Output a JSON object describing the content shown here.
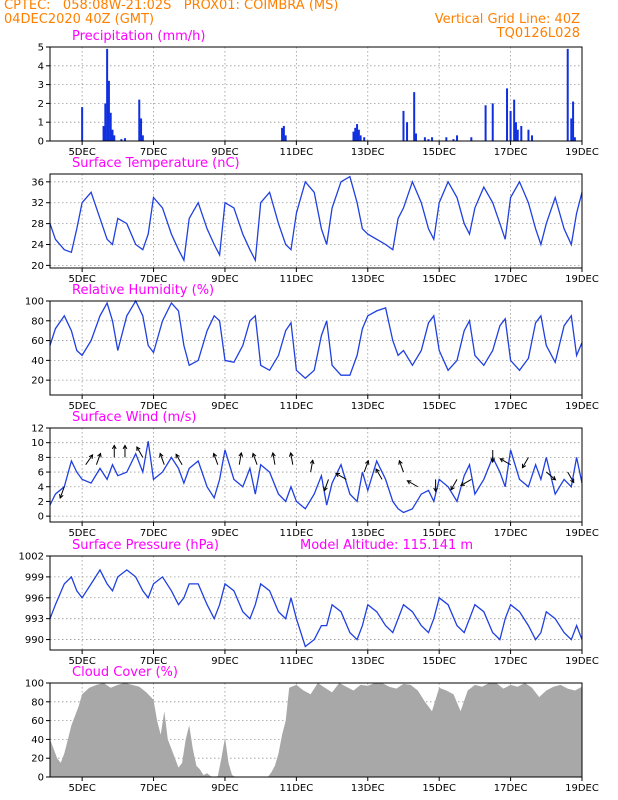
{
  "header": {
    "line1": "CPTEC:   058:08W-21:02S   PROX01: COIMBRA (MS)",
    "line2_left": "04DEC2020 40Z (GMT)",
    "line2_right": "Vertical Grid Line: 40Z",
    "line3_right": "TQ0126L028"
  },
  "x_axis": {
    "tick_labels": [
      "5DEC",
      "7DEC",
      "9DEC",
      "11DEC",
      "13DEC",
      "15DEC",
      "17DEC",
      "19DEC"
    ],
    "tick_days": [
      5,
      7,
      9,
      11,
      13,
      15,
      17,
      19
    ],
    "range_days": [
      4.1,
      19.0
    ]
  },
  "colors": {
    "line": "#2040e0",
    "bar": "#1030e0",
    "cloud": "#a8a8a8",
    "title": "#ff00ff",
    "header": "#ff8000",
    "arrow": "#000000"
  },
  "chart_data": [
    {
      "type": "bar",
      "title": "Precipitation (mm/h)",
      "ylim": [
        0,
        5
      ],
      "yticks": [
        0,
        1,
        2,
        3,
        4,
        5
      ],
      "grid": true,
      "x_day": [
        5.0,
        5.6,
        5.65,
        5.7,
        5.75,
        5.8,
        5.85,
        5.9,
        6.1,
        6.2,
        6.6,
        6.65,
        6.7,
        10.6,
        10.65,
        10.7,
        12.6,
        12.65,
        12.7,
        12.75,
        12.8,
        12.9,
        14.0,
        14.1,
        14.3,
        14.35,
        14.6,
        14.7,
        14.8,
        15.2,
        15.4,
        15.5,
        15.9,
        16.3,
        16.5,
        16.9,
        17.0,
        17.1,
        17.15,
        17.2,
        17.3,
        17.5,
        17.6,
        18.6,
        18.7,
        18.75,
        18.8
      ],
      "values": [
        1.8,
        0.8,
        2.0,
        4.9,
        3.2,
        1.5,
        0.6,
        0.3,
        0.1,
        0.15,
        2.2,
        1.2,
        0.3,
        0.7,
        0.8,
        0.3,
        0.5,
        0.7,
        0.9,
        0.6,
        0.3,
        0.2,
        1.6,
        1.0,
        2.6,
        0.4,
        0.2,
        0.1,
        0.2,
        0.2,
        0.1,
        0.3,
        0.2,
        1.9,
        2.0,
        2.8,
        1.6,
        2.2,
        1.0,
        0.6,
        0.8,
        0.6,
        0.3,
        4.9,
        1.2,
        2.1,
        0.2
      ]
    },
    {
      "type": "line",
      "title": "Surface Temperature (nC)",
      "ylim": [
        19.5,
        37.5
      ],
      "yticks": [
        20,
        24,
        28,
        32,
        36
      ],
      "grid": true,
      "x_day": [
        4.1,
        4.25,
        4.5,
        4.7,
        4.85,
        5.0,
        5.25,
        5.5,
        5.7,
        5.85,
        6.0,
        6.25,
        6.5,
        6.7,
        6.85,
        7.0,
        7.25,
        7.5,
        7.7,
        7.85,
        8.0,
        8.25,
        8.5,
        8.7,
        8.85,
        9.0,
        9.25,
        9.5,
        9.7,
        9.85,
        10.0,
        10.25,
        10.5,
        10.7,
        10.85,
        11.0,
        11.25,
        11.5,
        11.7,
        11.85,
        12.0,
        12.25,
        12.5,
        12.7,
        12.85,
        13.0,
        13.25,
        13.5,
        13.7,
        13.85,
        14.0,
        14.25,
        14.5,
        14.7,
        14.85,
        15.0,
        15.25,
        15.5,
        15.7,
        15.85,
        16.0,
        16.25,
        16.5,
        16.7,
        16.85,
        17.0,
        17.25,
        17.5,
        17.7,
        17.85,
        18.0,
        18.25,
        18.5,
        18.7,
        18.85,
        19.0
      ],
      "values": [
        28,
        25,
        23,
        22.5,
        27,
        32,
        34,
        29,
        25,
        24,
        29,
        28,
        24,
        23,
        26,
        33,
        31,
        26,
        23,
        21,
        29,
        32,
        27,
        24,
        22,
        32,
        31,
        26,
        23,
        21,
        32,
        34,
        28,
        24,
        23,
        30,
        36,
        34,
        27,
        24,
        31,
        36,
        37,
        32,
        27,
        26,
        25,
        24,
        23,
        29,
        31,
        36,
        32,
        27,
        25,
        32,
        36,
        33,
        28,
        26,
        31,
        35,
        32,
        28,
        25,
        33,
        36,
        32,
        27,
        24,
        28,
        33,
        27,
        24,
        30,
        34
      ]
    },
    {
      "type": "line",
      "title": "Relative Humidity (%)",
      "ylim": [
        5,
        100
      ],
      "yticks": [
        20,
        40,
        60,
        80,
        100
      ],
      "grid": true,
      "x_day": [
        4.1,
        4.25,
        4.5,
        4.7,
        4.85,
        5.0,
        5.25,
        5.5,
        5.7,
        5.85,
        6.0,
        6.25,
        6.5,
        6.7,
        6.85,
        7.0,
        7.25,
        7.5,
        7.7,
        7.85,
        8.0,
        8.25,
        8.5,
        8.7,
        8.85,
        9.0,
        9.25,
        9.5,
        9.7,
        9.85,
        10.0,
        10.25,
        10.5,
        10.7,
        10.85,
        11.0,
        11.25,
        11.5,
        11.7,
        11.85,
        12.0,
        12.25,
        12.5,
        12.7,
        12.85,
        13.0,
        13.25,
        13.5,
        13.7,
        13.85,
        14.0,
        14.25,
        14.5,
        14.7,
        14.85,
        15.0,
        15.25,
        15.5,
        15.7,
        15.85,
        16.0,
        16.25,
        16.5,
        16.7,
        16.85,
        17.0,
        17.25,
        17.5,
        17.7,
        17.85,
        18.0,
        18.25,
        18.5,
        18.7,
        18.85,
        19.0
      ],
      "values": [
        55,
        72,
        85,
        70,
        50,
        45,
        60,
        85,
        98,
        80,
        50,
        85,
        100,
        85,
        55,
        48,
        80,
        98,
        90,
        55,
        35,
        40,
        70,
        85,
        80,
        40,
        38,
        55,
        80,
        85,
        35,
        30,
        45,
        70,
        78,
        30,
        22,
        30,
        65,
        80,
        35,
        25,
        25,
        45,
        72,
        85,
        90,
        93,
        60,
        45,
        50,
        35,
        50,
        78,
        85,
        50,
        30,
        40,
        70,
        80,
        45,
        35,
        50,
        75,
        82,
        40,
        30,
        42,
        78,
        85,
        55,
        38,
        75,
        85,
        45,
        58
      ]
    },
    {
      "type": "line",
      "title": "Surface Wind (m/s)",
      "ylim": [
        -0.8,
        12
      ],
      "yticks": [
        0,
        2,
        4,
        6,
        8,
        10,
        12
      ],
      "grid": true,
      "x_day": [
        4.1,
        4.25,
        4.5,
        4.7,
        4.85,
        5.0,
        5.25,
        5.5,
        5.7,
        5.85,
        6.0,
        6.25,
        6.5,
        6.7,
        6.85,
        7.0,
        7.25,
        7.5,
        7.7,
        7.85,
        8.0,
        8.25,
        8.5,
        8.7,
        8.85,
        9.0,
        9.25,
        9.5,
        9.7,
        9.85,
        10.0,
        10.25,
        10.5,
        10.7,
        10.85,
        11.0,
        11.25,
        11.5,
        11.7,
        11.85,
        12.0,
        12.25,
        12.5,
        12.7,
        12.85,
        13.0,
        13.25,
        13.5,
        13.7,
        13.85,
        14.0,
        14.25,
        14.5,
        14.7,
        14.85,
        15.0,
        15.25,
        15.5,
        15.7,
        15.85,
        16.0,
        16.25,
        16.5,
        16.7,
        16.85,
        17.0,
        17.25,
        17.5,
        17.7,
        17.85,
        18.0,
        18.25,
        18.5,
        18.7,
        18.85,
        19.0
      ],
      "values": [
        1.5,
        3.0,
        4.0,
        7.5,
        6.0,
        5.0,
        4.5,
        6.5,
        5.0,
        7.0,
        5.5,
        6.0,
        8.5,
        6.0,
        10.2,
        5.0,
        6.0,
        8.0,
        6.5,
        4.5,
        6.5,
        7.5,
        4.0,
        2.5,
        5.0,
        9.0,
        5.0,
        4.0,
        6.5,
        3.0,
        7.0,
        6.0,
        3.0,
        2.0,
        4.0,
        2.0,
        1.0,
        3.0,
        5.5,
        1.5,
        4.5,
        7.0,
        3.0,
        2.0,
        6.0,
        3.5,
        7.5,
        5.0,
        2.0,
        1.0,
        0.5,
        1.0,
        3.0,
        3.5,
        2.0,
        5.0,
        4.0,
        2.0,
        5.5,
        7.0,
        3.0,
        5.0,
        8.0,
        6.0,
        4.0,
        9.0,
        5.0,
        4.0,
        7.0,
        5.0,
        8.0,
        3.0,
        5.0,
        4.0,
        8.0,
        4.5
      ],
      "arrows": [
        {
          "x_day": 4.5,
          "speed": 4,
          "dir_deg": 200
        },
        {
          "x_day": 5.1,
          "speed": 7,
          "dir_deg": 35
        },
        {
          "x_day": 5.4,
          "speed": 7,
          "dir_deg": 20
        },
        {
          "x_day": 5.9,
          "speed": 8,
          "dir_deg": 0
        },
        {
          "x_day": 6.2,
          "speed": 8,
          "dir_deg": 0
        },
        {
          "x_day": 6.7,
          "speed": 8,
          "dir_deg": 330
        },
        {
          "x_day": 7.3,
          "speed": 7,
          "dir_deg": 340
        },
        {
          "x_day": 7.8,
          "speed": 7,
          "dir_deg": 330
        },
        {
          "x_day": 8.8,
          "speed": 7,
          "dir_deg": 340
        },
        {
          "x_day": 9.4,
          "speed": 7,
          "dir_deg": 10
        },
        {
          "x_day": 9.9,
          "speed": 7,
          "dir_deg": 340
        },
        {
          "x_day": 10.4,
          "speed": 7,
          "dir_deg": 350
        },
        {
          "x_day": 10.9,
          "speed": 7,
          "dir_deg": 350
        },
        {
          "x_day": 11.4,
          "speed": 6,
          "dir_deg": 10
        },
        {
          "x_day": 11.9,
          "speed": 5,
          "dir_deg": 200
        },
        {
          "x_day": 12.4,
          "speed": 5,
          "dir_deg": 300
        },
        {
          "x_day": 12.9,
          "speed": 6,
          "dir_deg": 20
        },
        {
          "x_day": 13.4,
          "speed": 5,
          "dir_deg": 330
        },
        {
          "x_day": 14.0,
          "speed": 6,
          "dir_deg": 340
        },
        {
          "x_day": 14.4,
          "speed": 4,
          "dir_deg": 300
        },
        {
          "x_day": 14.9,
          "speed": 5,
          "dir_deg": 180
        },
        {
          "x_day": 15.5,
          "speed": 5,
          "dir_deg": 210
        },
        {
          "x_day": 15.9,
          "speed": 5,
          "dir_deg": 240
        },
        {
          "x_day": 16.5,
          "speed": 9,
          "dir_deg": 180
        },
        {
          "x_day": 17.0,
          "speed": 7,
          "dir_deg": 300
        },
        {
          "x_day": 17.5,
          "speed": 8,
          "dir_deg": 210
        },
        {
          "x_day": 18.0,
          "speed": 6,
          "dir_deg": 130
        },
        {
          "x_day": 18.6,
          "speed": 6,
          "dir_deg": 150
        }
      ]
    },
    {
      "type": "line",
      "title": "Surface Pressure (hPa)",
      "annotation": "Model Altitude: 115.141  m",
      "ylim": [
        988.5,
        1002
      ],
      "yticks": [
        990,
        993,
        996,
        999,
        1002
      ],
      "grid": true,
      "x_day": [
        4.1,
        4.25,
        4.5,
        4.7,
        4.85,
        5.0,
        5.25,
        5.5,
        5.7,
        5.85,
        6.0,
        6.25,
        6.5,
        6.7,
        6.85,
        7.0,
        7.25,
        7.5,
        7.7,
        7.85,
        8.0,
        8.25,
        8.5,
        8.7,
        8.85,
        9.0,
        9.25,
        9.5,
        9.7,
        9.85,
        10.0,
        10.25,
        10.5,
        10.7,
        10.85,
        11.0,
        11.25,
        11.5,
        11.7,
        11.85,
        12.0,
        12.25,
        12.5,
        12.7,
        12.85,
        13.0,
        13.25,
        13.5,
        13.7,
        13.85,
        14.0,
        14.25,
        14.5,
        14.7,
        14.85,
        15.0,
        15.25,
        15.5,
        15.7,
        15.85,
        16.0,
        16.25,
        16.5,
        16.7,
        16.85,
        17.0,
        17.25,
        17.5,
        17.7,
        17.85,
        18.0,
        18.25,
        18.5,
        18.7,
        18.85,
        19.0
      ],
      "values": [
        993,
        995,
        998,
        999,
        997,
        996,
        998,
        1000,
        998,
        997,
        999,
        1000,
        999,
        997,
        996,
        998,
        999,
        997,
        995,
        996,
        998,
        998,
        995,
        993,
        995,
        998,
        997,
        994,
        993,
        995,
        998,
        997,
        994,
        993,
        996,
        993,
        989,
        990,
        992,
        992,
        995,
        994,
        991,
        990,
        992,
        995,
        994,
        992,
        991,
        993,
        995,
        994,
        992,
        991,
        993,
        996,
        995,
        992,
        991,
        993,
        995,
        994,
        991,
        990,
        993,
        995,
        994,
        992,
        990,
        991,
        994,
        993,
        991,
        990,
        992,
        990
      ]
    },
    {
      "type": "area",
      "title": "Cloud Cover (%)",
      "ylim": [
        0,
        100
      ],
      "yticks": [
        0,
        20,
        40,
        60,
        80,
        100
      ],
      "grid": true,
      "x_day": [
        4.1,
        4.2,
        4.3,
        4.4,
        4.5,
        4.6,
        4.7,
        4.8,
        4.9,
        5.0,
        5.2,
        5.4,
        5.6,
        5.8,
        6.0,
        6.2,
        6.4,
        6.6,
        6.8,
        7.0,
        7.1,
        7.2,
        7.3,
        7.4,
        7.5,
        7.6,
        7.7,
        7.8,
        7.9,
        8.0,
        8.1,
        8.2,
        8.3,
        8.4,
        8.5,
        8.6,
        8.7,
        8.8,
        8.9,
        9.0,
        9.1,
        9.2,
        9.3,
        9.4,
        9.5,
        9.6,
        9.7,
        9.8,
        9.9,
        10.0,
        10.1,
        10.2,
        10.3,
        10.4,
        10.5,
        10.6,
        10.7,
        10.8,
        11.0,
        11.2,
        11.4,
        11.6,
        11.8,
        12.0,
        12.2,
        12.4,
        12.6,
        12.8,
        13.0,
        13.2,
        13.4,
        13.6,
        13.8,
        14.0,
        14.2,
        14.4,
        14.6,
        14.8,
        15.0,
        15.2,
        15.4,
        15.6,
        15.8,
        16.0,
        16.2,
        16.4,
        16.6,
        16.8,
        17.0,
        17.2,
        17.4,
        17.6,
        17.8,
        18.0,
        18.2,
        18.4,
        18.6,
        18.8,
        19.0
      ],
      "values": [
        40,
        30,
        20,
        15,
        25,
        40,
        55,
        65,
        75,
        88,
        95,
        98,
        100,
        95,
        98,
        100,
        98,
        96,
        90,
        82,
        60,
        45,
        70,
        40,
        30,
        20,
        10,
        15,
        40,
        55,
        30,
        12,
        8,
        2,
        4,
        1,
        0,
        1,
        20,
        42,
        15,
        2,
        0,
        0,
        0,
        0,
        0,
        0,
        0,
        0,
        0,
        0,
        5,
        12,
        25,
        45,
        60,
        95,
        98,
        92,
        88,
        100,
        95,
        90,
        100,
        96,
        92,
        98,
        97,
        100,
        100,
        96,
        94,
        99,
        98,
        92,
        80,
        70,
        95,
        92,
        88,
        70,
        92,
        98,
        96,
        100,
        100,
        94,
        98,
        96,
        100,
        95,
        85,
        92,
        96,
        98,
        94,
        92,
        96
      ]
    }
  ]
}
